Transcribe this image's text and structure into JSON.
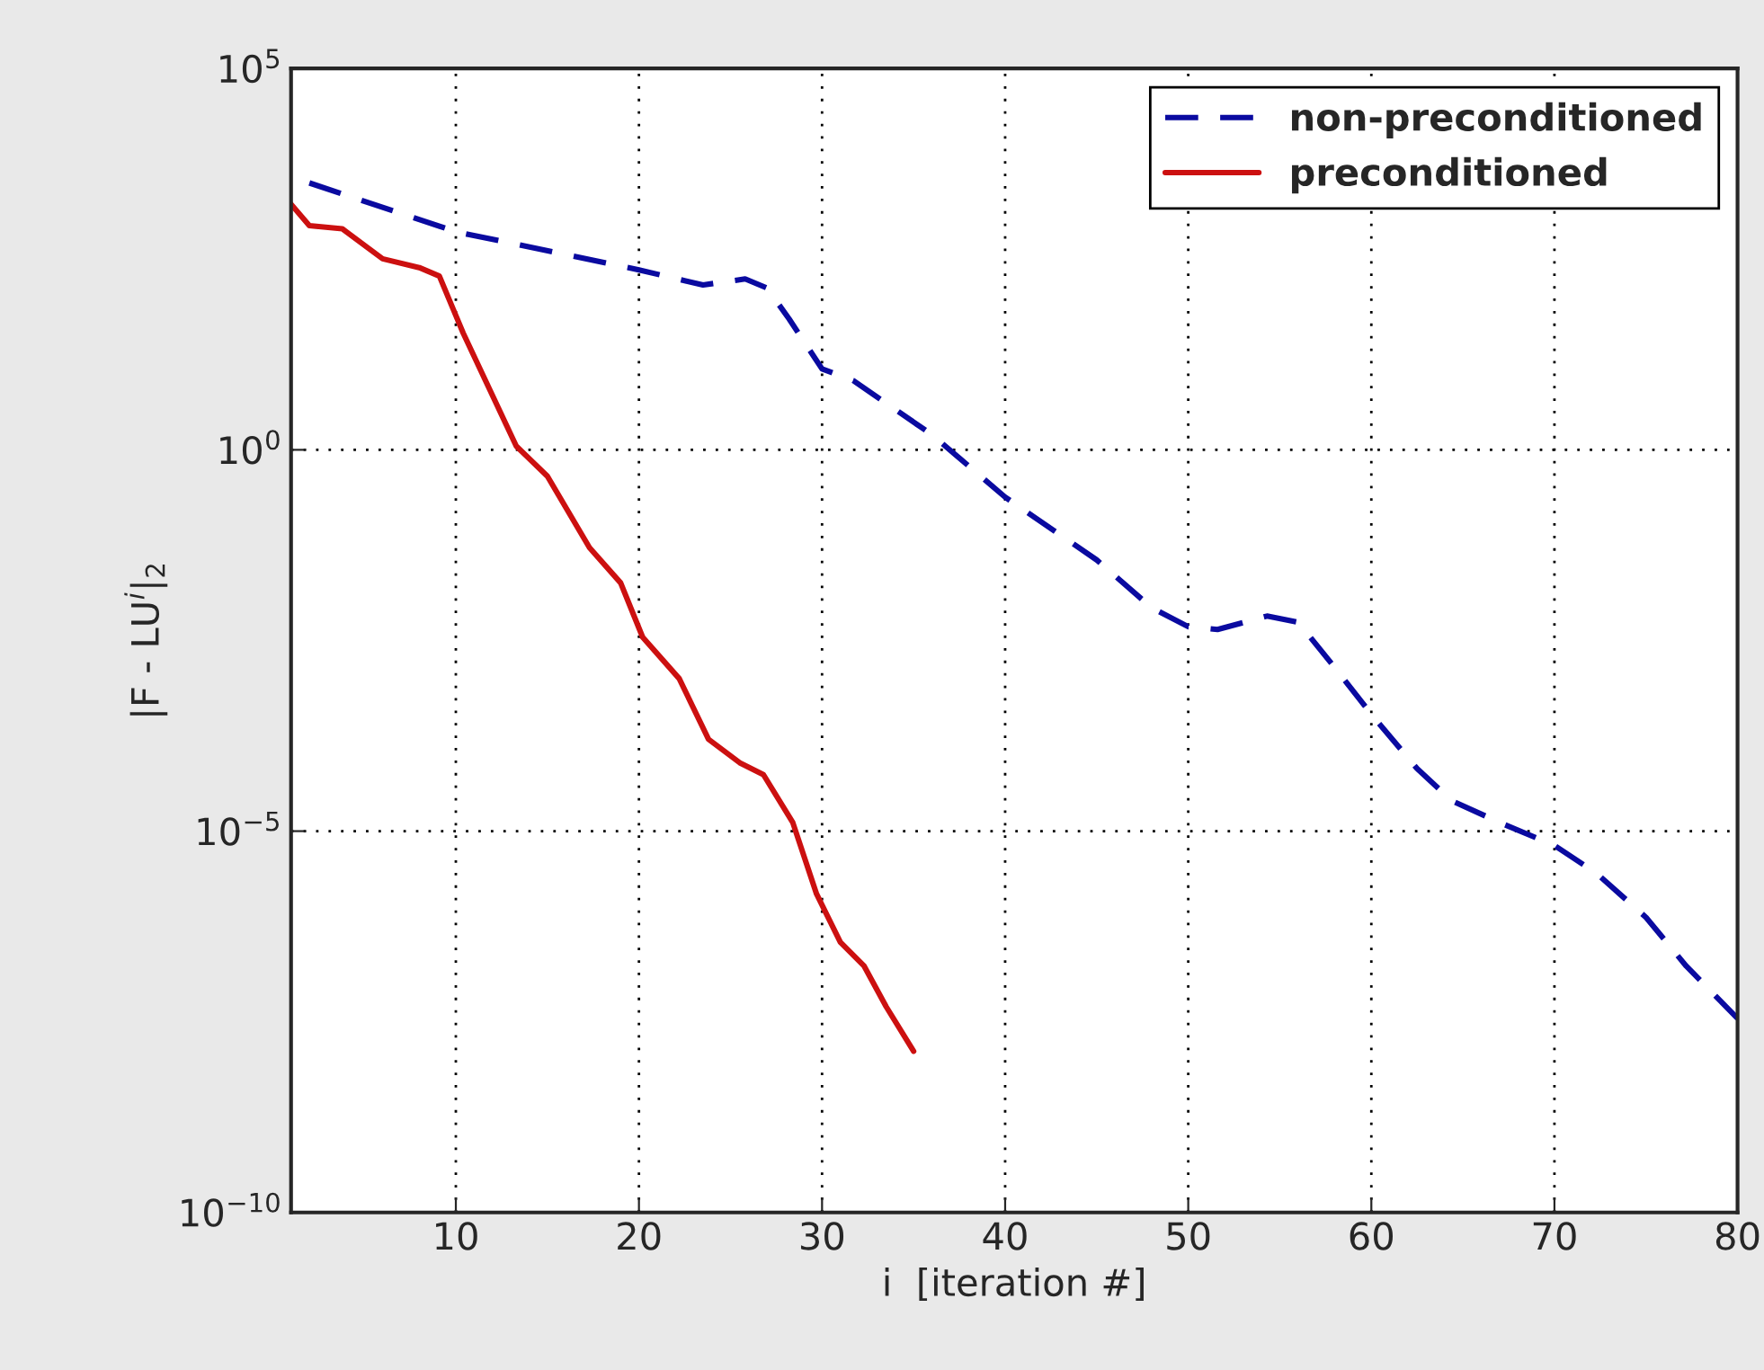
{
  "chart_data": {
    "type": "line",
    "xlabel": "i  [iteration #]",
    "ylabel": "|F - LU$^{i}$|$_{2}$",
    "log": "y",
    "grid": true,
    "legend": "top right",
    "xlim": [
      1,
      80
    ],
    "xticks": [
      10,
      20,
      30,
      40,
      50,
      60,
      70,
      80
    ],
    "ylim": [
      1e-10,
      100000
    ],
    "yticks": [
      {
        "value": 1e-10,
        "label": "10$^{−10}$"
      },
      {
        "value": 1e-05,
        "label": "10$^{−5}$"
      },
      {
        "value": 1,
        "label": "10$^{0}$"
      },
      {
        "value": 100000,
        "label": "10$^{5}$"
      }
    ],
    "series": [
      {
        "name": "non-preconditioned",
        "color": "#0a0aa0",
        "line_style": "dashed",
        "x": [
          2,
          10,
          20,
          23.5,
          25.8,
          27,
          28.2,
          30,
          31.7,
          36,
          40,
          45,
          48,
          50,
          51.6,
          54.3,
          56,
          58,
          60,
          62.5,
          64.4,
          67,
          70,
          72.3,
          75,
          77.2,
          80
        ],
        "values": [
          3160,
          724,
          229,
          145,
          174,
          132,
          52,
          11.5,
          8.1,
          1.58,
          0.24,
          0.036,
          0.0085,
          0.0048,
          0.0044,
          0.0066,
          0.0055,
          0.0014,
          0.00034,
          6.6e-05,
          2.5e-05,
          1.3e-05,
          6.5e-06,
          2.8e-06,
          7.4e-07,
          1.7e-07,
          3.5e-08
        ]
      },
      {
        "name": "preconditioned",
        "color": "#cc1010",
        "line_style": "solid",
        "x": [
          1,
          2,
          3.8,
          6,
          8,
          9.1,
          10.4,
          13.3,
          15,
          17.3,
          19,
          20.2,
          22.2,
          23.8,
          25.5,
          26.8,
          28.4,
          29.7,
          31,
          32.3,
          33.5,
          35
        ],
        "values": [
          1660,
          870,
          790,
          320,
          245,
          190,
          34,
          1.12,
          0.45,
          0.052,
          0.018,
          0.0035,
          0.001,
          0.00016,
          7.9e-05,
          5.5e-05,
          1.3e-05,
          1.5e-06,
          3.5e-07,
          1.7e-07,
          5e-08,
          1.3e-08
        ]
      }
    ]
  }
}
